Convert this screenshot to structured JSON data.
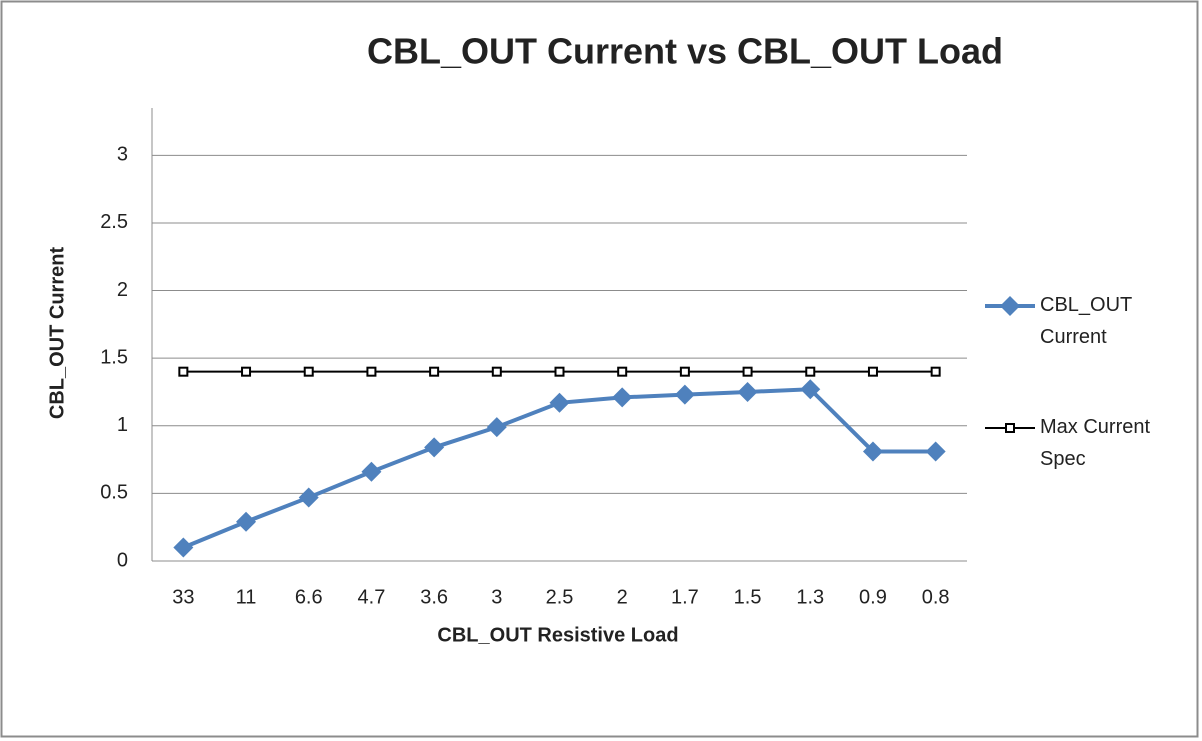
{
  "chart_data": {
    "type": "line",
    "title": "CBL_OUT Current vs CBL_OUT Load",
    "x_label": "CBL_OUT Resistive Load",
    "y_label": "CBL_OUT Current",
    "categories": [
      "33",
      "11",
      "6.6",
      "4.7",
      "3.6",
      "3",
      "2.5",
      "2",
      "1.7",
      "1.5",
      "1.3",
      "0.9",
      "0.8"
    ],
    "series": [
      {
        "name": "CBL_OUT Current",
        "color": "#4f81bd",
        "marker": "diamond",
        "values": [
          0.1,
          0.29,
          0.47,
          0.66,
          0.84,
          0.99,
          1.17,
          1.21,
          1.23,
          1.25,
          1.27,
          0.81,
          0.81
        ]
      },
      {
        "name": "Max Current Spec",
        "color": "#000000",
        "marker": "square",
        "values": [
          1.4,
          1.4,
          1.4,
          1.4,
          1.4,
          1.4,
          1.4,
          1.4,
          1.4,
          1.4,
          1.4,
          1.4,
          1.4
        ]
      }
    ],
    "ylim": [
      0,
      3.35
    ],
    "yticks": [
      0,
      0.5,
      1,
      1.5,
      2,
      2.5,
      3
    ],
    "grid": true,
    "legend": "right"
  }
}
